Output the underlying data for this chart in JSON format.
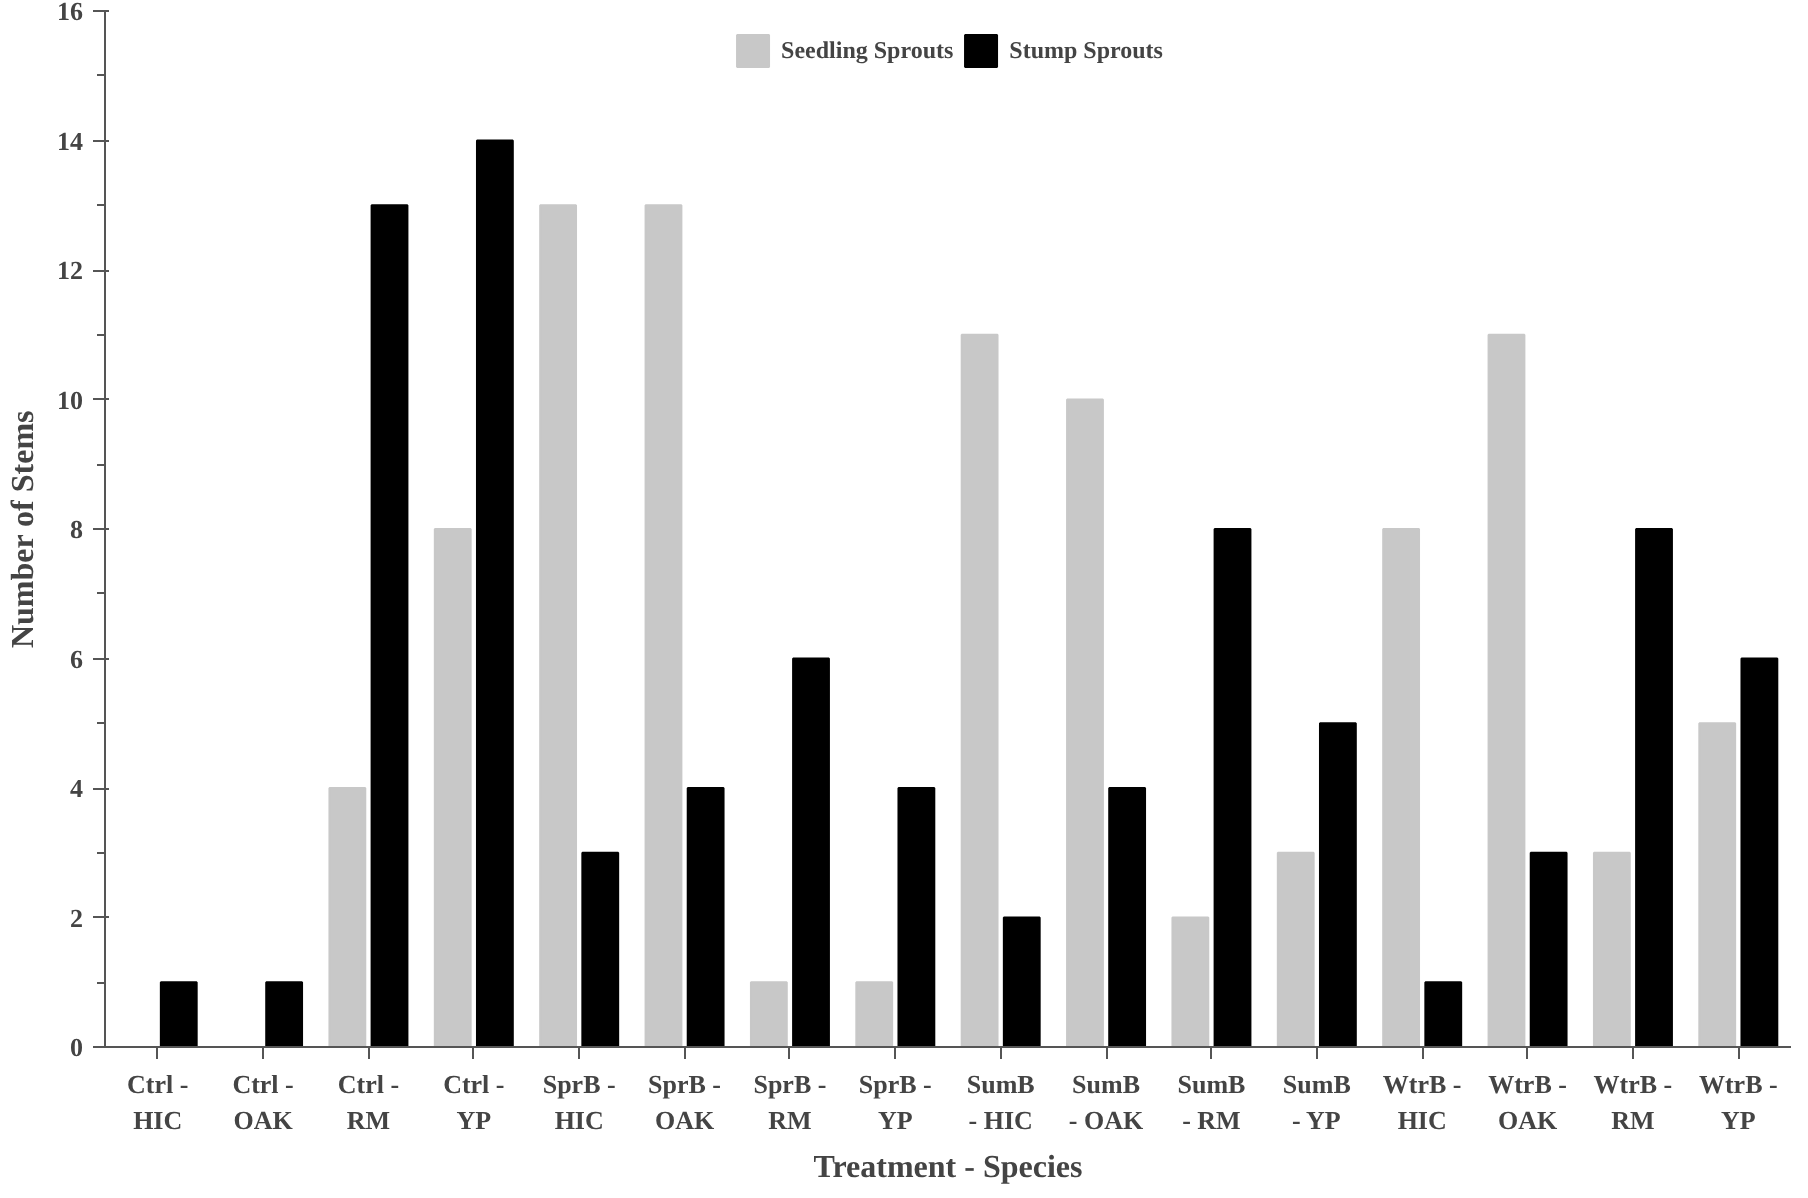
{
  "chart_data": {
    "type": "bar",
    "xlabel": "Treatment - Species",
    "ylabel": "Number of Stems",
    "categories": [
      "Ctrl -\nHIC",
      "Ctrl -\nOAK",
      "Ctrl -\nRM",
      "Ctrl -\nYP",
      "SprB -\nHIC",
      "SprB -\nOAK",
      "SprB -\nRM",
      "SprB -\nYP",
      "SumB\n- HIC",
      "SumB\n- OAK",
      "SumB\n- RM",
      "SumB\n- YP",
      "WtrB -\nHIC",
      "WtrB -\nOAK",
      "WtrB -\nRM",
      "WtrB -\nYP"
    ],
    "series": [
      {
        "name": "Seedling Sprouts",
        "color": "#c8c8c8",
        "values": [
          0,
          0,
          4,
          8,
          13,
          13,
          1,
          1,
          11,
          10,
          2,
          3,
          8,
          11,
          3,
          5
        ]
      },
      {
        "name": "Stump Sprouts",
        "color": "#000000",
        "values": [
          1,
          1,
          13,
          14,
          3,
          4,
          6,
          4,
          2,
          4,
          8,
          5,
          1,
          3,
          8,
          6
        ]
      }
    ],
    "ylim": [
      0,
      16
    ],
    "yticks": [
      0,
      2,
      4,
      6,
      8,
      10,
      12,
      14,
      16
    ],
    "grid": false,
    "legend": "top"
  }
}
